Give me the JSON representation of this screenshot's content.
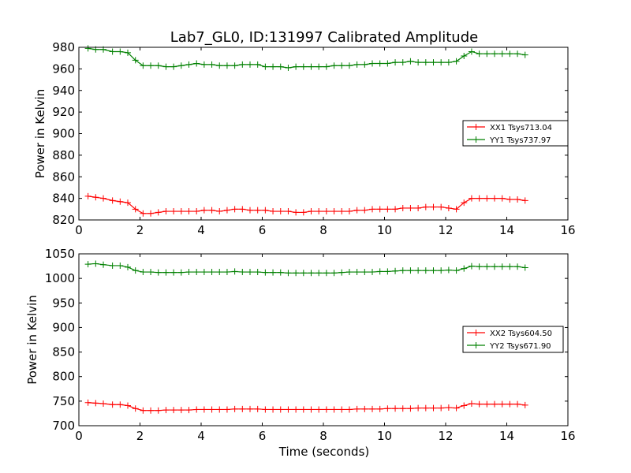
{
  "figure": {
    "title": "Lab7_GL0, ID:131997 Calibrated Amplitude",
    "xlabel": "Time (seconds)"
  },
  "colors": {
    "xx": "#ff0000",
    "yy": "#008000",
    "axis": "#000000",
    "background": "#ffffff"
  },
  "chart_data": [
    {
      "type": "line",
      "ylabel": "Power in Kelvin",
      "xlim": [
        0,
        16
      ],
      "ylim": [
        820,
        980
      ],
      "xticks": [
        0,
        2,
        4,
        6,
        8,
        10,
        12,
        14,
        16
      ],
      "yticks": [
        820,
        840,
        860,
        880,
        900,
        920,
        940,
        960,
        980
      ],
      "grid": false,
      "legend_position": "right",
      "x": [
        0.3,
        0.55,
        0.8,
        1.1,
        1.35,
        1.6,
        1.85,
        2.1,
        2.35,
        2.6,
        2.85,
        3.1,
        3.35,
        3.6,
        3.85,
        4.1,
        4.35,
        4.6,
        4.85,
        5.1,
        5.35,
        5.6,
        5.85,
        6.1,
        6.35,
        6.6,
        6.85,
        7.1,
        7.35,
        7.6,
        7.85,
        8.1,
        8.35,
        8.6,
        8.85,
        9.1,
        9.35,
        9.6,
        9.85,
        10.1,
        10.35,
        10.6,
        10.85,
        11.1,
        11.35,
        11.6,
        11.85,
        12.1,
        12.35,
        12.6,
        12.85,
        13.1,
        13.35,
        13.6,
        13.85,
        14.1,
        14.35,
        14.6
      ],
      "series": [
        {
          "name": "XX1 Tsys713.04",
          "color": "#ff0000",
          "values": [
            842,
            841,
            840,
            838,
            837,
            836,
            830,
            826,
            826,
            827,
            828,
            828,
            828,
            828,
            828,
            829,
            829,
            828,
            829,
            830,
            830,
            829,
            829,
            829,
            828,
            828,
            828,
            827,
            827,
            828,
            828,
            828,
            828,
            828,
            828,
            829,
            829,
            830,
            830,
            830,
            830,
            831,
            831,
            831,
            832,
            832,
            832,
            831,
            830,
            836,
            840,
            840,
            840,
            840,
            840,
            839,
            839,
            838
          ]
        },
        {
          "name": "YY1 Tsys737.97",
          "color": "#008000",
          "values": [
            979,
            978,
            978,
            976,
            976,
            975,
            968,
            963,
            963,
            963,
            962,
            962,
            963,
            964,
            965,
            964,
            964,
            963,
            963,
            963,
            964,
            964,
            964,
            962,
            962,
            962,
            961,
            962,
            962,
            962,
            962,
            962,
            963,
            963,
            963,
            964,
            964,
            965,
            965,
            965,
            966,
            966,
            967,
            966,
            966,
            966,
            966,
            966,
            967,
            972,
            976,
            974,
            974,
            974,
            974,
            974,
            974,
            973
          ]
        }
      ]
    },
    {
      "type": "line",
      "ylabel": "Power in Kelvin",
      "xlabel": "Time (seconds)",
      "xlim": [
        0,
        16
      ],
      "ylim": [
        700,
        1050
      ],
      "xticks": [
        0,
        2,
        4,
        6,
        8,
        10,
        12,
        14,
        16
      ],
      "yticks": [
        700,
        750,
        800,
        850,
        900,
        950,
        1000,
        1050
      ],
      "grid": false,
      "legend_position": "right",
      "x": [
        0.3,
        0.55,
        0.8,
        1.1,
        1.35,
        1.6,
        1.85,
        2.1,
        2.35,
        2.6,
        2.85,
        3.1,
        3.35,
        3.6,
        3.85,
        4.1,
        4.35,
        4.6,
        4.85,
        5.1,
        5.35,
        5.6,
        5.85,
        6.1,
        6.35,
        6.6,
        6.85,
        7.1,
        7.35,
        7.6,
        7.85,
        8.1,
        8.35,
        8.6,
        8.85,
        9.1,
        9.35,
        9.6,
        9.85,
        10.1,
        10.35,
        10.6,
        10.85,
        11.1,
        11.35,
        11.6,
        11.85,
        12.1,
        12.35,
        12.6,
        12.85,
        13.1,
        13.35,
        13.6,
        13.85,
        14.1,
        14.35,
        14.6
      ],
      "series": [
        {
          "name": "XX2 Tsys604.50",
          "color": "#ff0000",
          "values": [
            747,
            746,
            745,
            743,
            743,
            741,
            735,
            731,
            731,
            731,
            732,
            732,
            732,
            732,
            733,
            733,
            733,
            733,
            733,
            734,
            734,
            734,
            734,
            733,
            733,
            733,
            733,
            733,
            733,
            733,
            733,
            733,
            733,
            733,
            733,
            734,
            734,
            734,
            734,
            735,
            735,
            735,
            735,
            736,
            736,
            736,
            736,
            737,
            736,
            741,
            745,
            744,
            744,
            744,
            744,
            744,
            744,
            742
          ]
        },
        {
          "name": "YY2 Tsys671.90",
          "color": "#008000",
          "values": [
            1029,
            1030,
            1028,
            1026,
            1026,
            1023,
            1016,
            1013,
            1013,
            1012,
            1012,
            1012,
            1012,
            1013,
            1013,
            1013,
            1013,
            1013,
            1013,
            1014,
            1013,
            1013,
            1013,
            1012,
            1012,
            1012,
            1011,
            1011,
            1011,
            1011,
            1011,
            1011,
            1011,
            1012,
            1013,
            1013,
            1013,
            1013,
            1014,
            1014,
            1015,
            1016,
            1016,
            1016,
            1016,
            1016,
            1016,
            1017,
            1016,
            1020,
            1025,
            1024,
            1024,
            1024,
            1024,
            1024,
            1024,
            1022
          ]
        }
      ]
    }
  ]
}
